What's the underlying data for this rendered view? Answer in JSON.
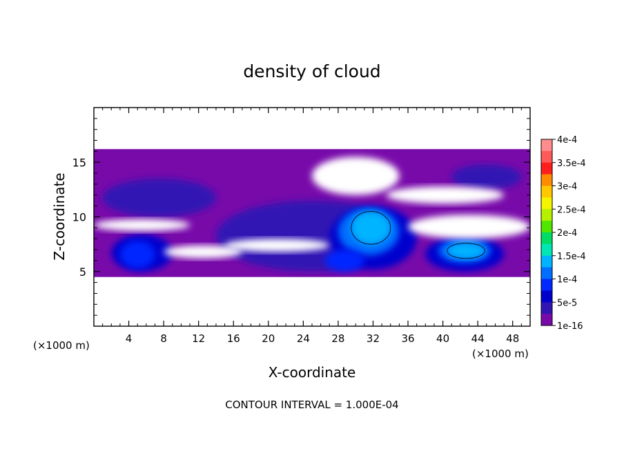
{
  "chart_data": {
    "type": "heatmap",
    "title": "density of cloud",
    "xlabel": "X-coordinate",
    "ylabel": "Z-coordinate",
    "x_unit_left": "(×1000 m)",
    "x_unit_right": "(×1000 m)",
    "xlim": [
      0,
      50
    ],
    "ylim": [
      0,
      20
    ],
    "x_ticks": [
      4,
      8,
      12,
      16,
      20,
      24,
      28,
      32,
      36,
      40,
      44,
      48
    ],
    "x_tick_labels": [
      "4",
      "8",
      "12",
      "16",
      "20",
      "24",
      "28",
      "32",
      "36",
      "40",
      "44",
      "48"
    ],
    "y_ticks": [
      5,
      10,
      15
    ],
    "y_tick_labels": [
      "5",
      "10",
      "15"
    ],
    "footer": "CONTOUR INTERVAL = 1.000E-04",
    "colorbar": {
      "labels": [
        "4e-4",
        "3.5e-4",
        "3e-4",
        "2.5e-4",
        "2e-4",
        "1.5e-4",
        "1e-4",
        "5e-5",
        "1e-16"
      ],
      "colors": [
        "#ff8c8c",
        "#ff5a5a",
        "#ff1e1e",
        "#ff8c00",
        "#ffc800",
        "#f5f500",
        "#b4f000",
        "#50e600",
        "#00dc64",
        "#00e6b4",
        "#00b4ff",
        "#006eff",
        "#0028ff",
        "#0000cd",
        "#3214b4",
        "#780aaa"
      ]
    },
    "cloud_layer_z": [
      4.5,
      16.2
    ],
    "regions": [
      {
        "level": 0,
        "x": [
          0,
          50
        ],
        "z": [
          4.5,
          16.2
        ],
        "note": "base cloud fill"
      },
      {
        "level": 1,
        "x": [
          1,
          14
        ],
        "z": [
          10,
          13.5
        ]
      },
      {
        "level": 2,
        "x": [
          2,
          9
        ],
        "z": [
          5,
          8.4
        ]
      },
      {
        "level": 3,
        "x": [
          3,
          7
        ],
        "z": [
          5.3,
          7.8
        ]
      },
      {
        "level": 1,
        "x": [
          14,
          36
        ],
        "z": [
          5,
          11.5
        ]
      },
      {
        "level": 2,
        "x": [
          27,
          37
        ],
        "z": [
          5.2,
          11
        ]
      },
      {
        "level": 4,
        "x": [
          28,
          35
        ],
        "z": [
          6.5,
          10.8
        ]
      },
      {
        "level": 5,
        "x": [
          29.5,
          34
        ],
        "z": [
          7.5,
          10.5
        ]
      },
      {
        "level": 3,
        "x": [
          26.5,
          31
        ],
        "z": [
          5,
          7
        ]
      },
      {
        "level": 2,
        "x": [
          38,
          47
        ],
        "z": [
          5,
          8.2
        ]
      },
      {
        "level": 4,
        "x": [
          39.5,
          45.5
        ],
        "z": [
          5.8,
          8
        ]
      },
      {
        "level": 5,
        "x": [
          40.5,
          44.8
        ],
        "z": [
          6.2,
          7.6
        ]
      },
      {
        "level": 1,
        "x": [
          41,
          49
        ],
        "z": [
          12.5,
          14.8
        ]
      }
    ],
    "gaps": [
      {
        "x": [
          0,
          11
        ],
        "z": [
          8.7,
          9.8
        ]
      },
      {
        "x": [
          8,
          17
        ],
        "z": [
          6.2,
          7.4
        ]
      },
      {
        "x": [
          15,
          27
        ],
        "z": [
          6.8,
          8
        ]
      },
      {
        "x": [
          25,
          35
        ],
        "z": [
          12,
          15.5
        ]
      },
      {
        "x": [
          33.5,
          47
        ],
        "z": [
          11.2,
          12.8
        ]
      },
      {
        "x": [
          36,
          50
        ],
        "z": [
          8,
          10.2
        ]
      }
    ]
  }
}
